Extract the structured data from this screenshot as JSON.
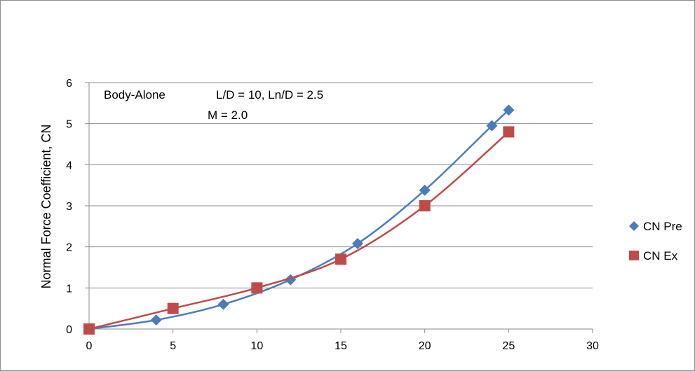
{
  "chart_data": {
    "type": "scatter",
    "title": "",
    "xlabel": "",
    "ylabel": "Normal Force Coefficient, CN",
    "xlim": [
      0,
      30
    ],
    "ylim": [
      0,
      6
    ],
    "x_ticks": [
      0,
      5,
      10,
      15,
      20,
      25,
      30
    ],
    "y_ticks": [
      0,
      1,
      2,
      3,
      4,
      5,
      6
    ],
    "grid": "horizontal",
    "legend_position": "right",
    "annotations": [
      "Body-Alone",
      "L/D = 10, Ln/D = 2.5",
      "M = 2.0"
    ],
    "series": [
      {
        "name": "CN Pre",
        "marker": "diamond",
        "color": "#4a7ebb",
        "x": [
          0,
          4,
          8,
          12,
          16,
          20,
          24,
          25
        ],
        "y": [
          0,
          0.22,
          0.6,
          1.2,
          2.08,
          3.38,
          4.95,
          5.33
        ]
      },
      {
        "name": "CN Ex",
        "marker": "square",
        "color": "#be4b48",
        "x": [
          0,
          5,
          10,
          15,
          20,
          25
        ],
        "y": [
          0,
          0.5,
          1.0,
          1.7,
          3.0,
          4.8
        ]
      }
    ]
  }
}
